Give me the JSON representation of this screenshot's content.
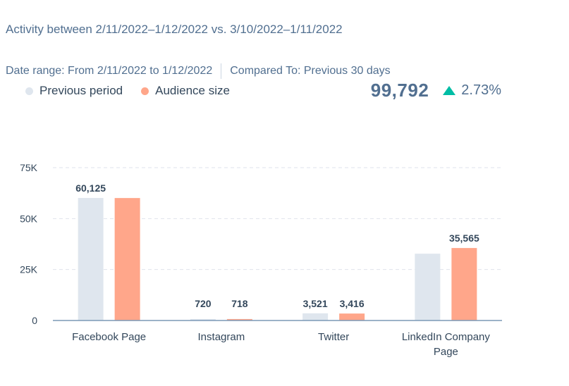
{
  "title": "Activity between 2/11/2022–1/12/2022 vs. 3/10/2022–1/11/2022",
  "date_range": "Date range: From 2/11/2022 to 1/12/2022",
  "compared_to": "Compared To: Previous 30 days",
  "total": "99,792",
  "change": "2.73%",
  "change_direction": "up",
  "colors": {
    "previous": "#dfe6ee",
    "audience": "#ffa68a",
    "up": "#00bda5"
  },
  "chart_data": {
    "type": "bar",
    "categories": [
      "Facebook Page",
      "Instagram",
      "Twitter",
      "LinkedIn Company Page"
    ],
    "series": [
      {
        "name": "Previous period",
        "values": [
          60125,
          720,
          3521,
          32774
        ],
        "labels": [
          "60,125",
          "720",
          "3,521",
          null
        ]
      },
      {
        "name": "Audience size",
        "values": [
          60093,
          718,
          3416,
          35565
        ],
        "labels": [
          null,
          "718",
          "3,416",
          "35,565"
        ]
      }
    ],
    "yticks": [
      "0",
      "25K",
      "50K",
      "75K"
    ],
    "ytick_values": [
      0,
      25000,
      50000,
      75000
    ],
    "ylim": [
      0,
      75000
    ],
    "grid": true,
    "legend": "top-left"
  }
}
